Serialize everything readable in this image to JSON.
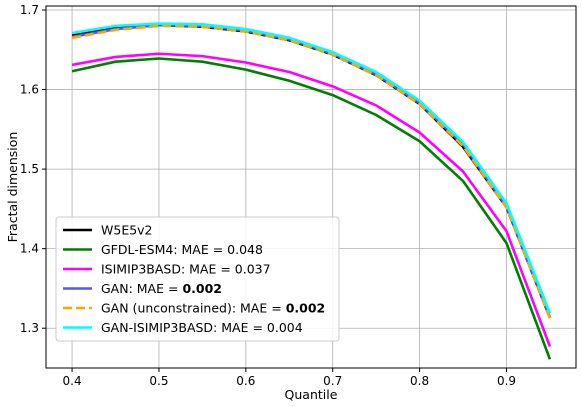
{
  "chart_data": {
    "type": "line",
    "xlabel": "Quantile",
    "ylabel": "Fractal dimension",
    "xlim": [
      0.37,
      0.98
    ],
    "ylim": [
      1.25,
      1.705
    ],
    "xticks": [
      0.4,
      0.5,
      0.6,
      0.7,
      0.8,
      0.9
    ],
    "xtick_labels": [
      "0.4",
      "0.5",
      "0.6",
      "0.7",
      "0.8",
      "0.9"
    ],
    "yticks": [
      1.3,
      1.4,
      1.5,
      1.6,
      1.7
    ],
    "ytick_labels": [
      "1.3",
      "1.4",
      "1.5",
      "1.6",
      "1.7"
    ],
    "grid": true,
    "legend_position": "lower-left",
    "x": [
      0.4,
      0.45,
      0.5,
      0.55,
      0.6,
      0.65,
      0.7,
      0.75,
      0.8,
      0.85,
      0.9,
      0.95
    ],
    "series": [
      {
        "name": "W5E5v2",
        "legend_prefix": "W5E5v2",
        "legend_value": "",
        "value_bold": false,
        "color": "#000000",
        "dash": "solid",
        "values": [
          1.668,
          1.677,
          1.681,
          1.679,
          1.673,
          1.662,
          1.644,
          1.618,
          1.582,
          1.528,
          1.452,
          1.313
        ]
      },
      {
        "name": "GFDL-ESM4",
        "legend_prefix": "GFDL-ESM4: MAE = ",
        "legend_value": "0.048",
        "value_bold": false,
        "color": "#008000",
        "dash": "solid",
        "values": [
          1.623,
          1.635,
          1.639,
          1.635,
          1.625,
          1.611,
          1.593,
          1.568,
          1.535,
          1.485,
          1.407,
          1.261
        ]
      },
      {
        "name": "ISIMIP3BASD",
        "legend_prefix": "ISIMIP3BASD: MAE = ",
        "legend_value": "0.037",
        "value_bold": false,
        "color": "#ff00ff",
        "dash": "solid",
        "values": [
          1.631,
          1.641,
          1.645,
          1.642,
          1.634,
          1.622,
          1.604,
          1.58,
          1.546,
          1.497,
          1.422,
          1.277
        ]
      },
      {
        "name": "GAN",
        "legend_prefix": "GAN: MAE = ",
        "legend_value": "0.002",
        "value_bold": true,
        "color": "#5555ff",
        "dash": "solid",
        "values": [
          1.666,
          1.676,
          1.681,
          1.68,
          1.674,
          1.663,
          1.645,
          1.619,
          1.583,
          1.531,
          1.453,
          1.314
        ]
      },
      {
        "name": "GAN (unconstrained)",
        "legend_prefix": "GAN (unconstrained): MAE = ",
        "legend_value": "0.002",
        "value_bold": true,
        "color": "#ffa500",
        "dash": "dashed",
        "values": [
          1.665,
          1.675,
          1.68,
          1.679,
          1.673,
          1.662,
          1.644,
          1.618,
          1.582,
          1.529,
          1.452,
          1.313
        ]
      },
      {
        "name": "GAN-ISIMIP3BASD",
        "legend_prefix": "GAN-ISIMIP3BASD: MAE = ",
        "legend_value": "0.004",
        "value_bold": false,
        "color": "#00ffff",
        "dash": "solid",
        "values": [
          1.671,
          1.68,
          1.683,
          1.682,
          1.676,
          1.665,
          1.647,
          1.622,
          1.586,
          1.534,
          1.457,
          1.319
        ]
      }
    ]
  }
}
